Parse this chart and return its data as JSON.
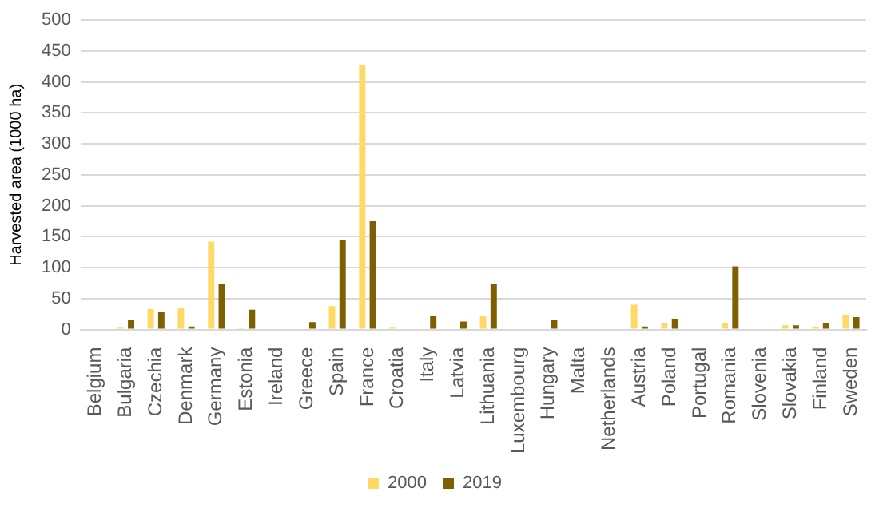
{
  "chart_data": {
    "type": "bar",
    "ylabel": "Harvested area (1000 ha)",
    "categories": [
      "Belgium",
      "Bulgaria",
      "Czechia",
      "Denmark",
      "Germany",
      "Estonia",
      "Ireland",
      "Greece",
      "Spain",
      "France",
      "Croatia",
      "Italy",
      "Latvia",
      "Lithuania",
      "Luxembourg",
      "Hungary",
      "Malta",
      "Netherlands",
      "Austria",
      "Poland",
      "Portugal",
      "Romania",
      "Slovenia",
      "Slovakia",
      "Finland",
      "Sweden"
    ],
    "series": [
      {
        "name": "2000",
        "color": "#ffd966",
        "values": [
          null,
          3,
          33,
          35,
          142,
          2,
          0,
          null,
          38,
          428,
          3,
          null,
          0,
          22,
          0,
          0,
          0,
          0,
          40,
          11,
          0,
          11,
          0,
          7,
          5,
          24
        ]
      },
      {
        "name": "2019",
        "color": "#7f6000",
        "values": [
          0,
          15,
          28,
          5,
          73,
          32,
          0,
          12,
          145,
          175,
          0,
          22,
          13,
          73,
          0,
          15,
          0,
          0,
          5,
          17,
          0,
          102,
          0,
          7,
          11,
          20
        ]
      }
    ],
    "ylim": [
      0,
      500
    ],
    "yticks": [
      0,
      50,
      100,
      150,
      200,
      250,
      300,
      350,
      400,
      450,
      500
    ],
    "grid": "y",
    "legend": "bottom"
  }
}
